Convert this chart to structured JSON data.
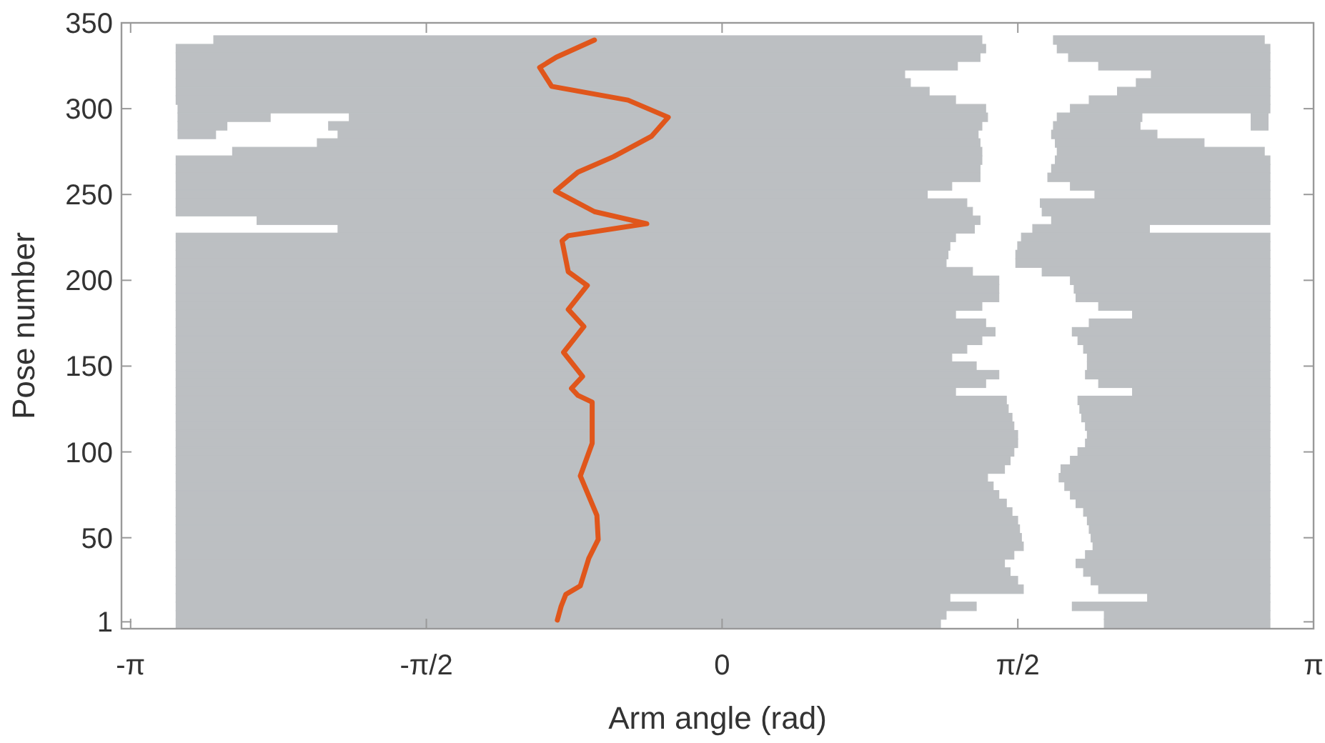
{
  "chart_data": {
    "type": "line",
    "xlabel": "Arm angle (rad)",
    "ylabel": "Pose number",
    "xlim": [
      -3.19,
      3.1416
    ],
    "ylim": [
      -3,
      350
    ],
    "xticks": [
      {
        "value": -3.1416,
        "label": "-π"
      },
      {
        "value": -1.5708,
        "label": "-π/2"
      },
      0,
      {
        "value": 1.5708,
        "label": "π/2"
      },
      {
        "value": 3.1416,
        "label": "π"
      }
    ],
    "yticks": [
      1,
      50,
      100,
      150,
      200,
      250,
      300,
      350
    ],
    "grid": false,
    "orientation": "horizontal",
    "series": [
      {
        "type": "bar",
        "color": "#bcbfc2",
        "x": [
          340,
          335,
          330,
          325,
          320,
          315,
          310,
          305,
          300,
          295,
          290,
          285,
          280,
          275,
          270,
          265,
          260,
          255,
          250,
          245,
          240,
          235,
          230,
          225,
          220,
          215,
          210,
          205,
          200,
          195,
          190,
          185,
          180,
          175,
          170,
          165,
          160,
          155,
          150,
          145,
          140,
          135,
          130,
          125,
          120,
          115,
          110,
          105,
          100,
          95,
          90,
          85,
          80,
          75,
          70,
          65,
          60,
          55,
          50,
          45,
          40,
          35,
          30,
          25,
          20,
          15,
          10,
          5,
          0
        ],
        "base": [
          -2.7,
          -2.9,
          -2.9,
          -2.9,
          -2.9,
          -2.9,
          -2.9,
          -2.9,
          -2.89,
          -1.98,
          -2.09,
          -2.04,
          -2.15,
          -2.6,
          -2.9,
          -2.9,
          -2.9,
          -2.9,
          -2.9,
          -2.9,
          -2.9,
          -2.47,
          -2.04,
          -2.9,
          -2.9,
          -2.9,
          -2.9,
          -2.9,
          -2.9,
          -2.9,
          -2.9,
          -2.9,
          -2.9,
          -2.9,
          -2.9,
          -2.9,
          -2.9,
          -2.9,
          -2.9,
          -2.9,
          -2.9,
          -2.9,
          -2.9,
          -2.9,
          -2.9,
          -2.9,
          -2.9,
          -2.9,
          -2.9,
          -2.9,
          -2.9,
          -2.9,
          -2.9,
          -2.9,
          -2.9,
          -2.9,
          -2.9,
          -2.9,
          -2.9,
          -2.9,
          -2.9,
          -2.9,
          -2.9,
          -2.9,
          -2.9,
          -2.9,
          -2.9,
          -2.9,
          -2.9
        ],
        "values": [
          4.08,
          4.3,
          4.27,
          4.15,
          3.87,
          3.9,
          4.0,
          4.14,
          4.29,
          3.39,
          3.47,
          3.4,
          3.52,
          3.98,
          4.28,
          4.27,
          4.27,
          4.12,
          3.99,
          4.2,
          4.23,
          3.84,
          3.38,
          4.14,
          4.11,
          4.1,
          4.09,
          4.23,
          4.37,
          4.37,
          4.37,
          4.28,
          4.14,
          4.3,
          4.35,
          4.28,
          4.2,
          4.12,
          4.25,
          4.37,
          4.3,
          4.14,
          4.41,
          4.42,
          4.44,
          4.45,
          4.47,
          4.47,
          4.45,
          4.43,
          4.4,
          4.31,
          4.34,
          4.37,
          4.41,
          4.44,
          4.47,
          4.48,
          4.49,
          4.5,
          4.45,
          4.4,
          4.43,
          4.47,
          4.5,
          4.11,
          4.25,
          4.09,
          4.06
        ]
      },
      {
        "type": "bar",
        "color": "#bcbfc2",
        "x": [
          340,
          335,
          330,
          325,
          320,
          315,
          310,
          305,
          300,
          295,
          290,
          285,
          280,
          275,
          270,
          265,
          260,
          255,
          250,
          245,
          240,
          235,
          230,
          225,
          220,
          215,
          210,
          205,
          200,
          195,
          190,
          185,
          180,
          175,
          170,
          165,
          160,
          155,
          150,
          145,
          140,
          135,
          130,
          125,
          120,
          115,
          110,
          105,
          100,
          95,
          90,
          85,
          80,
          75,
          70,
          65,
          60,
          55,
          50,
          45,
          40,
          35,
          30,
          25,
          20,
          15,
          10,
          5,
          0
        ],
        "base": [
          1.76,
          1.78,
          1.84,
          2.0,
          2.28,
          2.2,
          2.1,
          1.95,
          1.85,
          1.78,
          1.76,
          1.75,
          1.77,
          1.78,
          1.77,
          1.75,
          1.73,
          1.85,
          1.98,
          1.69,
          1.7,
          1.75,
          1.65,
          1.59,
          1.57,
          1.56,
          1.56,
          1.7,
          1.85,
          1.87,
          1.88,
          2.0,
          2.18,
          1.95,
          1.86,
          1.89,
          1.92,
          1.94,
          1.94,
          1.93,
          2.0,
          2.18,
          1.89,
          1.9,
          1.91,
          1.93,
          1.94,
          1.93,
          1.89,
          1.85,
          1.8,
          1.79,
          1.82,
          1.85,
          1.88,
          1.92,
          1.94,
          1.95,
          1.96,
          1.97,
          1.93,
          1.88,
          1.92,
          1.96,
          2.0,
          2.26,
          1.86,
          2.03,
          2.03
        ],
        "values": [
          1.12,
          1.13,
          1.07,
          0.91,
          0.63,
          0.71,
          0.81,
          0.96,
          1.06,
          0.45,
          0.46,
          0.56,
          0.79,
          1.1,
          1.14,
          1.16,
          1.18,
          1.06,
          0.93,
          1.22,
          1.21,
          1.16,
          0.62,
          1.32,
          1.34,
          1.35,
          1.35,
          1.21,
          1.06,
          1.04,
          1.03,
          0.91,
          0.73,
          0.96,
          1.05,
          1.02,
          0.99,
          0.97,
          0.97,
          0.98,
          0.91,
          0.73,
          1.02,
          1.01,
          1.0,
          0.98,
          0.97,
          0.98,
          1.02,
          1.06,
          1.11,
          1.12,
          1.09,
          1.06,
          1.03,
          0.99,
          0.97,
          0.96,
          0.95,
          0.94,
          0.98,
          1.03,
          0.99,
          0.95,
          0.91,
          0.65,
          1.05,
          0.88,
          0.88
        ]
      },
      {
        "type": "bar",
        "color": "#bcbfc2",
        "x": [
          295,
          290
        ],
        "base": [
          2.81,
          2.81
        ],
        "values": [
          0.09,
          0.09
        ]
      },
      {
        "type": "bar",
        "color": "#bcbfc2",
        "x": [
          295,
          290,
          285
        ],
        "base": [
          -2.89,
          -2.89,
          -2.89
        ],
        "values": [
          0.49,
          0.26,
          0.2
        ]
      },
      {
        "color": "#e0561b",
        "line_style": "solid",
        "marker": "none",
        "values": [
          -0.875,
          -0.855,
          -0.83,
          -0.753,
          -0.708,
          -0.658,
          -0.665,
          -0.753,
          -0.69,
          -0.69,
          -0.766,
          -0.8,
          -0.741,
          -0.842,
          -0.734,
          -0.817,
          -0.716,
          -0.817,
          -0.85,
          -0.817,
          -0.4,
          -0.678,
          -0.885,
          -0.766,
          -0.577,
          -0.374,
          -0.286,
          -0.5,
          -0.905,
          -0.969,
          -0.88,
          -0.678
        ],
        "x": [
          2,
          10,
          17,
          22,
          38,
          49,
          63,
          86,
          105,
          129,
          133,
          137,
          144,
          158,
          173,
          183,
          197,
          205,
          223,
          226,
          233,
          240,
          252,
          263,
          272,
          284,
          295,
          305,
          313,
          324,
          330,
          340
        ]
      }
    ]
  }
}
